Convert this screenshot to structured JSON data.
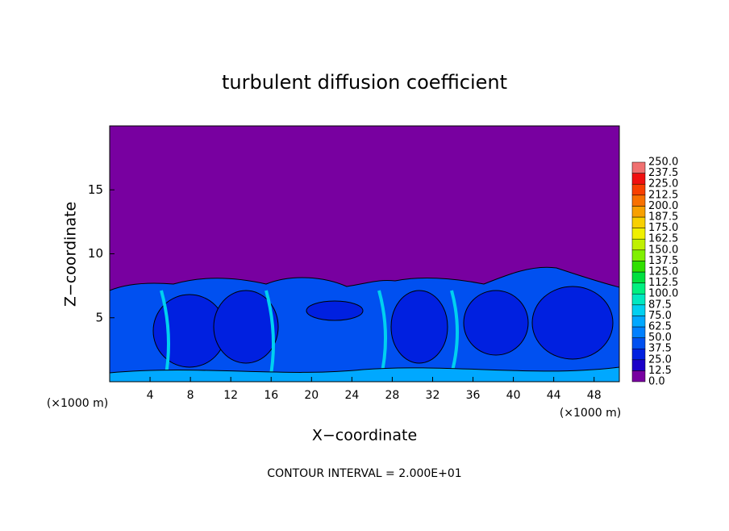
{
  "chart_data": {
    "type": "contour",
    "title": "turbulent diffusion coefficient",
    "x_label": "X−coordinate",
    "y_label": "Z−coordinate",
    "x_unit": "(×1000 m)",
    "y_unit": "(×1000 m)",
    "annotation": "CONTOUR INTERVAL = 2.000E+01",
    "xlim": [
      0,
      50.5
    ],
    "ylim": [
      0,
      20
    ],
    "xticks": [
      4,
      8,
      12,
      16,
      20,
      24,
      28,
      32,
      36,
      40,
      44,
      48
    ],
    "yticks": [
      5,
      10,
      15
    ],
    "background_color": "#7800a0",
    "colorbar": {
      "levels": [
        {
          "value": 0,
          "label": "0.0"
        },
        {
          "value": 12.5,
          "label": "12.5"
        },
        {
          "value": 25,
          "label": "25.0"
        },
        {
          "value": 37.5,
          "label": "37.5"
        },
        {
          "value": 50,
          "label": "50.0"
        },
        {
          "value": 62.5,
          "label": "62.5"
        },
        {
          "value": 75,
          "label": "75.0"
        },
        {
          "value": 87.5,
          "label": "87.5"
        },
        {
          "value": 100,
          "label": "100.0"
        },
        {
          "value": 112.5,
          "label": "112.5"
        },
        {
          "value": 125,
          "label": "125.0"
        },
        {
          "value": 137.5,
          "label": "137.5"
        },
        {
          "value": 150,
          "label": "150.0"
        },
        {
          "value": 162.5,
          "label": "162.5"
        },
        {
          "value": 175,
          "label": "175.0"
        },
        {
          "value": 187.5,
          "label": "187.5"
        },
        {
          "value": 200,
          "label": "200.0"
        },
        {
          "value": 212.5,
          "label": "212.5"
        },
        {
          "value": 225,
          "label": "225.0"
        },
        {
          "value": 237.5,
          "label": "237.5"
        },
        {
          "value": 250,
          "label": "250.0"
        }
      ],
      "colors": [
        "#7800a0",
        "#1c00c8",
        "#0020e0",
        "#0050f0",
        "#0080ff",
        "#00a8ff",
        "#00d0f0",
        "#00e8c0",
        "#00f080",
        "#00e040",
        "#30e000",
        "#80f000",
        "#c0f000",
        "#f0f000",
        "#f8d000",
        "#f8a000",
        "#f87000",
        "#f84000",
        "#f01010",
        "#f07070"
      ]
    }
  }
}
